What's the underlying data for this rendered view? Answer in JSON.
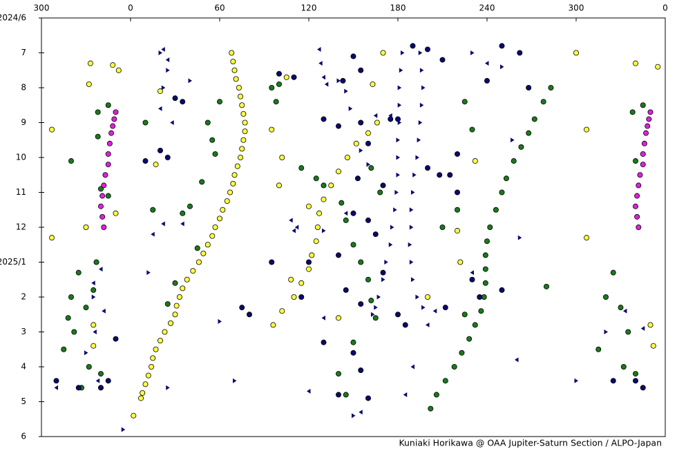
{
  "chart_data": {
    "type": "scatter",
    "annotation": "Kuniaki Horikawa @ OAA Jupiter-Saturn Section / ALPO-Japan",
    "xlim": [
      -60,
      360
    ],
    "xticks": [
      {
        "value": -60,
        "label": "300"
      },
      0,
      60,
      120,
      180,
      240,
      300,
      {
        "value": 360,
        "label": "0"
      }
    ],
    "ylim": [
      12,
      0
    ],
    "yticks": [
      {
        "value": 0,
        "label": "2024/6"
      },
      {
        "value": 1,
        "label": "7"
      },
      {
        "value": 2,
        "label": "8"
      },
      {
        "value": 3,
        "label": "9"
      },
      {
        "value": 4,
        "label": "10"
      },
      {
        "value": 5,
        "label": "11"
      },
      {
        "value": 6,
        "label": "12"
      },
      {
        "value": 7,
        "label": "2025/1"
      },
      {
        "value": 8,
        "label": "2"
      },
      {
        "value": 9,
        "label": "3"
      },
      {
        "value": 10,
        "label": "4"
      },
      {
        "value": 11,
        "label": "5"
      },
      {
        "value": 12,
        "label": "6"
      }
    ],
    "grid": false,
    "series": [
      {
        "color": "#ffff40",
        "edgecolor": "#000000",
        "marker": "circle",
        "x": [
          68,
          69,
          70,
          71,
          73,
          74,
          75,
          76,
          77,
          77,
          76,
          75,
          74,
          72,
          70,
          69,
          67,
          65,
          62,
          60,
          57,
          55,
          52,
          49,
          46,
          42,
          38,
          35,
          33,
          31,
          30,
          27,
          23,
          20,
          17,
          15,
          14,
          12,
          10,
          8,
          7
        ],
        "values": [
          1,
          1.25,
          1.5,
          1.75,
          2,
          2.25,
          2.5,
          2.75,
          3,
          3.25,
          3.5,
          3.75,
          4,
          4.25,
          4.5,
          4.75,
          5,
          5.25,
          5.5,
          5.75,
          6,
          6.25,
          6.5,
          6.75,
          7,
          7.25,
          7.5,
          7.75,
          8,
          8.25,
          8.5,
          8.75,
          9,
          9.25,
          9.5,
          9.75,
          10,
          10.25,
          10.5,
          10.75,
          10.9
        ]
      },
      {
        "color": "#ffff40",
        "edgecolor": "#000000",
        "marker": "circle",
        "x": [
          166,
          160,
          152,
          146,
          140,
          135,
          130,
          127,
          126,
          125,
          122,
          120,
          115,
          110,
          102,
          96
        ],
        "values": [
          3,
          3.3,
          3.6,
          4,
          4.4,
          4.8,
          5.2,
          5.6,
          6,
          6.4,
          6.8,
          7.2,
          7.6,
          8,
          8.4,
          8.8
        ]
      },
      {
        "color": "#ffff40",
        "edgecolor": "#000000",
        "marker": "circle",
        "x": [
          -27,
          -12,
          -8,
          -28,
          -30,
          -10,
          -53,
          -53,
          -25,
          -25,
          108,
          105,
          95,
          102,
          100,
          120,
          140,
          170,
          300,
          307,
          307,
          340,
          355,
          350,
          352,
          17,
          20,
          220,
          222,
          232,
          200,
          163,
          2
        ],
        "values": [
          1.3,
          1.35,
          1.5,
          1.9,
          6,
          5.6,
          3.2,
          6.3,
          8.8,
          9.4,
          7.5,
          1.7,
          3.2,
          4,
          4.8,
          5.4,
          8.6,
          1,
          1,
          3.2,
          6.3,
          1.3,
          1.4,
          8.8,
          9.4,
          4.2,
          2.1,
          6.1,
          7,
          4.1,
          8,
          1.9,
          11.4
        ]
      },
      {
        "color": "#1a7a1a",
        "edgecolor": "#000000",
        "marker": "circle",
        "x": [
          283,
          278,
          272,
          268,
          263,
          258,
          253,
          250,
          246,
          242,
          240,
          239,
          239,
          239,
          238,
          236,
          232,
          228,
          223,
          218,
          212,
          206,
          202
        ],
        "values": [
          2,
          2.4,
          2.9,
          3.3,
          3.7,
          4.1,
          4.6,
          5,
          5.5,
          6,
          6.4,
          6.8,
          7.2,
          7.6,
          8,
          8.4,
          8.8,
          9.2,
          9.6,
          10,
          10.4,
          10.8,
          11.2
        ]
      },
      {
        "color": "#1a7a1a",
        "edgecolor": "#000000",
        "marker": "circle",
        "x": [
          -35,
          -40,
          -30,
          -42,
          -38,
          -25,
          -45,
          -28,
          -33,
          -20,
          -23,
          -20,
          -22,
          -22,
          -15,
          -40,
          -15,
          325,
          320,
          330,
          335,
          315,
          332,
          340,
          338,
          345,
          340,
          55,
          57,
          52,
          60,
          48,
          40,
          35,
          45,
          30,
          25,
          95,
          100,
          98,
          115,
          125,
          130,
          142,
          145,
          150,
          155,
          160,
          162,
          165,
          150,
          140,
          145,
          162,
          168,
          210,
          220,
          225,
          230,
          225,
          280,
          15,
          10
        ],
        "values": [
          7.3,
          8,
          8.3,
          8.6,
          9,
          7.8,
          9.5,
          10,
          10.6,
          10.2,
          7,
          4.9,
          3.4,
          2.7,
          2.5,
          4.1,
          5.1,
          7.3,
          8,
          8.3,
          9,
          9.5,
          10,
          10.2,
          2.7,
          2.5,
          4.1,
          3.5,
          3.9,
          3,
          2.4,
          4.7,
          5.4,
          5.6,
          6.6,
          7.6,
          8.2,
          2,
          1.9,
          2.4,
          4.3,
          4.6,
          4.8,
          5.3,
          5.8,
          6.5,
          7,
          7.5,
          8.1,
          8.6,
          9.3,
          10.2,
          10.8,
          4.3,
          5,
          6,
          5.5,
          2.4,
          3.2,
          8.5,
          7.7,
          5.5,
          3
        ]
      },
      {
        "color": "#0a0a6e",
        "edgecolor": "#000000",
        "marker": "circle",
        "x": [
          190,
          200,
          210,
          150,
          155,
          143,
          240,
          250,
          262,
          268,
          175,
          180,
          130,
          140,
          155,
          160,
          153,
          170,
          200,
          208,
          215,
          220,
          150,
          160,
          165,
          140,
          145,
          155,
          170,
          180,
          185,
          130,
          150,
          155,
          140,
          160,
          20,
          25,
          30,
          35,
          75,
          80,
          -10,
          -15,
          -20,
          -35,
          -50,
          340,
          345,
          325,
          10,
          100,
          110,
          95,
          120,
          115,
          250,
          230,
          235,
          212,
          220
        ],
        "values": [
          0.8,
          0.9,
          1.2,
          1.1,
          1.5,
          1.8,
          1.8,
          0.8,
          1,
          2,
          2.9,
          2.9,
          2.9,
          3.1,
          3,
          3.6,
          4.6,
          4.8,
          4.3,
          4.5,
          4.5,
          5,
          5.6,
          5.8,
          6.2,
          6.8,
          7.8,
          8.2,
          7.3,
          8.5,
          8.8,
          9.3,
          9.6,
          10.1,
          10.8,
          10.9,
          3.8,
          4,
          2.3,
          2.4,
          8.3,
          8.5,
          9.2,
          10.4,
          10.6,
          10.6,
          10.4,
          10.4,
          10.6,
          10.4,
          4.1,
          1.6,
          1.7,
          7,
          7,
          8,
          7.8,
          7.5,
          8,
          8.3,
          3.9
        ]
      },
      {
        "color": "#e020e0",
        "edgecolor": "#000000",
        "marker": "circle",
        "x": [
          -10,
          -11,
          -12,
          -13,
          -14,
          -15,
          -15,
          -17,
          -18,
          -19,
          -20,
          -19,
          -18,
          350,
          349,
          348,
          347,
          346,
          345,
          345,
          343,
          342,
          341,
          340,
          341,
          342
        ],
        "values": [
          2.7,
          2.9,
          3.1,
          3.3,
          3.6,
          3.9,
          4.2,
          4.5,
          4.8,
          5.1,
          5.4,
          5.7,
          6,
          2.7,
          2.9,
          3.1,
          3.3,
          3.6,
          3.9,
          4.2,
          4.5,
          4.8,
          5.1,
          5.4,
          5.7,
          6
        ]
      },
      {
        "color": "#0a0a6e",
        "marker": "triangle-right",
        "x": [
          183,
          182,
          181,
          181,
          181,
          180,
          180,
          180,
          179,
          178,
          176,
          175,
          172,
          170,
          167,
          165,
          163,
          195,
          196,
          197,
          196,
          195,
          194,
          193,
          191,
          190,
          189,
          189,
          188,
          189,
          190,
          193,
          197
        ],
        "values": [
          1,
          1.5,
          2,
          2.5,
          3,
          3.5,
          4,
          4.5,
          5,
          5.5,
          6,
          6.5,
          7,
          7.5,
          8,
          8.3,
          8.5,
          1,
          1.5,
          2,
          2.5,
          3,
          3.5,
          4,
          4.5,
          5,
          5.5,
          6,
          6.5,
          7,
          7.5,
          8,
          8.3
        ]
      },
      {
        "color": "#0a0a6e",
        "marker": "triangle-right",
        "x": [
          20,
          25,
          22,
          40,
          140,
          145,
          148,
          155,
          160,
          257,
          262,
          230,
          250,
          130,
          12,
          -30,
          -25,
          70,
          60,
          25,
          150,
          -5,
          300,
          320
        ],
        "values": [
          1,
          1.5,
          2,
          1.8,
          1.8,
          2.1,
          2.6,
          3.8,
          4.2,
          3.5,
          6.3,
          1,
          1.4,
          6.1,
          7.3,
          9.6,
          8,
          10.4,
          8.7,
          10.6,
          11.4,
          11.8,
          10.4,
          9
        ]
      },
      {
        "color": "#0a0a6e",
        "marker": "triangle-left",
        "x": [
          22,
          25,
          20,
          28,
          -20,
          -25,
          -18,
          -24,
          -22,
          127,
          128,
          130,
          132,
          145,
          165,
          175,
          108,
          110,
          112,
          15,
          22,
          35,
          200,
          205,
          190,
          185,
          230,
          240,
          260,
          333,
          345,
          -50,
          155,
          120,
          130
        ],
        "values": [
          0.9,
          1.2,
          2.6,
          3,
          7.2,
          7.6,
          8.4,
          9,
          10.4,
          0.9,
          1.3,
          1.7,
          1.9,
          5.6,
          2.8,
          2.8,
          5.8,
          6.1,
          6,
          6.2,
          5.9,
          5.9,
          8.8,
          8.4,
          10,
          10.8,
          7.3,
          1.3,
          9.8,
          8.4,
          8.9,
          10.6,
          11.3,
          10.7,
          8.6
        ]
      }
    ]
  }
}
